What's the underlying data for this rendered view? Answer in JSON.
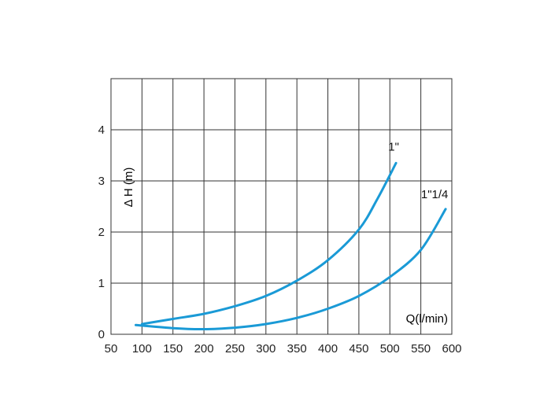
{
  "chart_data": {
    "type": "line",
    "xlabel": "Q(l/min)",
    "ylabel": "Δ H (m)",
    "xlim": [
      50,
      600
    ],
    "ylim": [
      0,
      5
    ],
    "x_ticks": [
      50,
      100,
      150,
      200,
      250,
      300,
      350,
      400,
      450,
      500,
      550,
      600
    ],
    "y_ticks": [
      0,
      1,
      2,
      3,
      4
    ],
    "grid": true,
    "line_color": "#1a9ad6",
    "series": [
      {
        "name": "1\"",
        "points": [
          [
            100,
            0.2
          ],
          [
            150,
            0.3
          ],
          [
            200,
            0.4
          ],
          [
            250,
            0.55
          ],
          [
            300,
            0.75
          ],
          [
            350,
            1.05
          ],
          [
            400,
            1.45
          ],
          [
            450,
            2.05
          ],
          [
            480,
            2.65
          ],
          [
            510,
            3.35
          ]
        ]
      },
      {
        "name": "1\"1/4",
        "points": [
          [
            90,
            0.18
          ],
          [
            150,
            0.12
          ],
          [
            200,
            0.1
          ],
          [
            250,
            0.13
          ],
          [
            300,
            0.2
          ],
          [
            350,
            0.32
          ],
          [
            400,
            0.5
          ],
          [
            450,
            0.75
          ],
          [
            500,
            1.12
          ],
          [
            550,
            1.65
          ],
          [
            590,
            2.45
          ]
        ]
      }
    ]
  }
}
